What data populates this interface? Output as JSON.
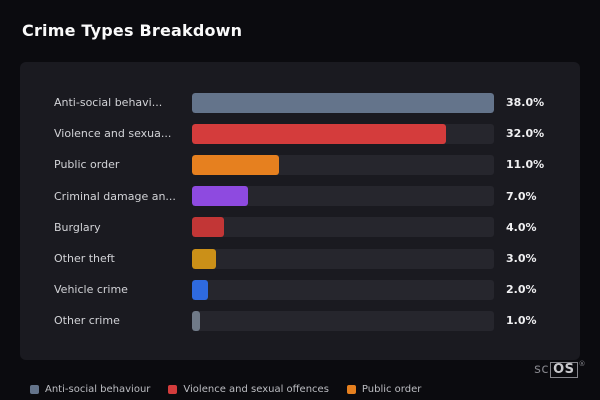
{
  "title": "Crime Types Breakdown",
  "chart_data": {
    "type": "bar",
    "orientation": "horizontal",
    "title": "Crime Types Breakdown",
    "categories": [
      "Anti-social behavi...",
      "Violence and sexua...",
      "Public order",
      "Criminal damage an...",
      "Burglary",
      "Other theft",
      "Vehicle crime",
      "Other crime"
    ],
    "values": [
      38.0,
      32.0,
      11.0,
      7.0,
      4.0,
      3.0,
      2.0,
      1.0
    ],
    "value_labels": [
      "38.0%",
      "32.0%",
      "11.0%",
      "7.0%",
      "4.0%",
      "3.0%",
      "2.0%",
      "1.0%"
    ],
    "bar_colors": [
      "#64748b",
      "#d43c3c",
      "#e6801f",
      "#8e4ae0",
      "#c23636",
      "#cb9018",
      "#2e6ae0",
      "#707a88"
    ],
    "track_color": "#26262d",
    "xlim": [
      0,
      38
    ],
    "grid": false,
    "legend_position": "bottom"
  },
  "legend": {
    "items": [
      {
        "label": "Anti-social behaviour",
        "color": "#64748b"
      },
      {
        "label": "Violence and sexual offences",
        "color": "#d43c3c"
      },
      {
        "label": "Public order",
        "color": "#e6801f"
      }
    ]
  },
  "watermark": {
    "prefix": "sc",
    "box": "OS",
    "reg": "®"
  }
}
